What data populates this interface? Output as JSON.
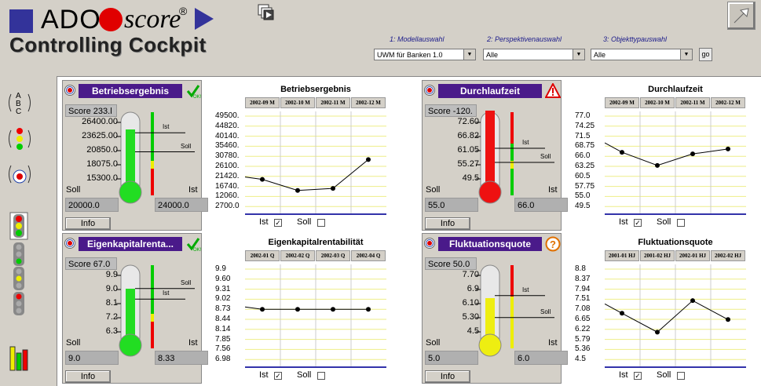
{
  "header": {
    "brand_ado": "ADO",
    "brand_score": "score",
    "brand_reg": "®",
    "subtitle": "Controlling Cockpit"
  },
  "selectors": [
    {
      "label": "1: Modellauswahl",
      "value": "UWM für Banken 1.0"
    },
    {
      "label": "2: Perspektivenauswahl",
      "value": "Alle"
    },
    {
      "label": "3: Objekttypauswahl",
      "value": "Alle"
    }
  ],
  "go_label": "go",
  "icons": {
    "abc": "abc-sort-icon",
    "traffic": "traffic-light-sort-icon",
    "target": "target-sort-icon",
    "tl1": "traffic-light-red-icon",
    "tl2": "traffic-light-green-icon",
    "tl3": "traffic-light-yellow-icon",
    "tl4": "traffic-light-red2-icon",
    "export": "export-icon"
  },
  "widgets": [
    {
      "title": "Betriebsergebnis",
      "score": "Score 233.l",
      "status": "ok",
      "soll_label": "Soll",
      "ist_label": "Ist",
      "soll_value": "20000.0",
      "ist_value": "24000.0",
      "info": "Info",
      "ticks": [
        "26400.00",
        "23625.00",
        "20850.0",
        "18075.0",
        "15300.0"
      ],
      "fill": 0.7,
      "color": "#22dd22",
      "ist_tag": "Ist",
      "soll_tag": "Soll",
      "ist_pos": 0.82,
      "soll_pos": 0.55,
      "chart": {
        "title": "Betriebsergebnis",
        "headers": [
          "2002-09 M",
          "2002-10 M",
          "2002-11 M",
          "2002-12 M"
        ],
        "yticks": [
          "49500.",
          "44820.",
          "40140.",
          "35460.",
          "30780.",
          "26100.",
          "21420.",
          "16740.",
          "12060.",
          "2700.0"
        ],
        "points": [
          16740,
          11000,
          12060,
          27000
        ],
        "ymin": 2700,
        "ymax": 49500,
        "ist_label": "Ist",
        "soll_label": "Soll",
        "ist_checked": true,
        "soll_checked": false
      }
    },
    {
      "title": "Durchlaufzeit",
      "score": "Score -120.",
      "status": "warn",
      "soll_label": "Soll",
      "ist_label": "Ist",
      "soll_value": "55.0",
      "ist_value": "66.0",
      "info": "Info",
      "ticks": [
        "72.60",
        "66.82",
        "61.05",
        "55.27",
        "49.5"
      ],
      "fill": 0.98,
      "color": "#ee1111",
      "ist_tag": "Ist",
      "soll_tag": "Soll",
      "ist_pos": 0.6,
      "soll_pos": 0.4,
      "chart": {
        "title": "Durchlaufzeit",
        "headers": [
          "2002-09 M",
          "2002-10 M",
          "2002-11 M",
          "2002-12 M"
        ],
        "yticks": [
          "77.0",
          "74.25",
          "71.5",
          "68.75",
          "66.0",
          "63.25",
          "60.5",
          "57.75",
          "55.0",
          "49.5"
        ],
        "points": [
          66.0,
          62.0,
          65.5,
          67.0
        ],
        "ymin": 49.5,
        "ymax": 77.0,
        "ist_label": "Ist",
        "soll_label": "Soll",
        "ist_checked": true,
        "soll_checked": false
      }
    },
    {
      "title": "Eigenkapitalrenta...",
      "score": "Score 67.0",
      "status": "ok",
      "soll_label": "Soll",
      "ist_label": "Ist",
      "soll_value": "9.0",
      "ist_value": "8.33",
      "info": "Info",
      "ticks": [
        "9.9",
        "9.0",
        "8.1",
        "7.2",
        "6.3"
      ],
      "fill": 0.62,
      "color": "#22dd22",
      "ist_tag": "Ist",
      "soll_tag": "Soll",
      "ist_pos": 0.63,
      "soll_pos": 0.78,
      "chart": {
        "title": "Eigenkapitalrentabilität",
        "headers": [
          "2002-01 Q",
          "2002-02 Q",
          "2002-03 Q",
          "2002-04 Q"
        ],
        "yticks": [
          "9.9",
          "9.60",
          "9.31",
          "9.02",
          "8.73",
          "8.44",
          "8.14",
          "7.85",
          "7.56",
          "6.98"
        ],
        "points": [
          8.6,
          8.6,
          8.6,
          8.6
        ],
        "ymin": 6.98,
        "ymax": 9.9,
        "ist_label": "Ist",
        "soll_label": "Soll",
        "ist_checked": true,
        "soll_checked": false
      }
    },
    {
      "title": "Fluktuationsquote",
      "score": "Score 50.0",
      "status": "question",
      "soll_label": "Soll",
      "ist_label": "Ist",
      "soll_value": "5.0",
      "ist_value": "6.0",
      "info": "Info",
      "ticks": [
        "7.70",
        "6.9",
        "6.10",
        "5.30",
        "4.5"
      ],
      "fill": 0.5,
      "color": "#eeee11",
      "ist_tag": "Ist",
      "soll_tag": "Soll",
      "ist_pos": 0.68,
      "soll_pos": 0.37,
      "chart": {
        "title": "Fluktuationsquote",
        "headers": [
          "2001-01 HJ",
          "2001-02 HJ",
          "2002-01 HJ",
          "2002-02 HJ"
        ],
        "yticks": [
          "8.8",
          "8.37",
          "7.94",
          "7.51",
          "7.08",
          "6.65",
          "6.22",
          "5.79",
          "5.36",
          "4.5"
        ],
        "points": [
          6.7,
          5.8,
          7.3,
          6.4
        ],
        "ymin": 4.5,
        "ymax": 8.8,
        "ist_label": "Ist",
        "soll_label": "Soll",
        "ist_checked": true,
        "soll_checked": false
      }
    }
  ]
}
